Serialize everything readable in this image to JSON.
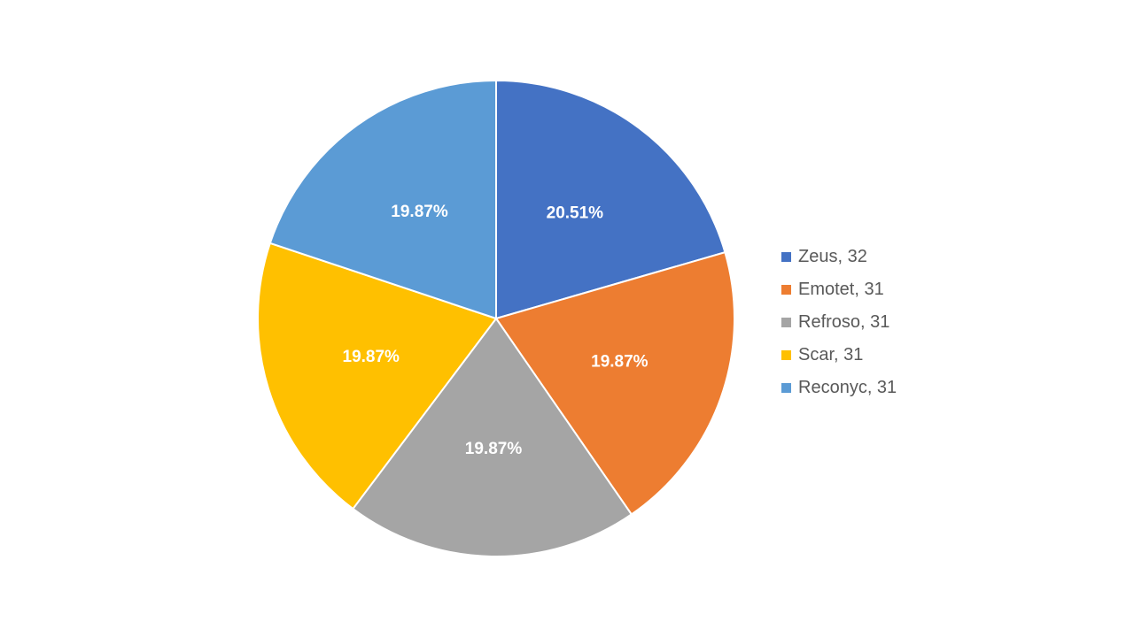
{
  "chart_data": {
    "type": "pie",
    "title": "",
    "categories": [
      "Zeus",
      "Emotet",
      "Refroso",
      "Scar",
      "Reconyc"
    ],
    "values": [
      32,
      31,
      31,
      31,
      31
    ],
    "percent_labels": [
      "20.51%",
      "19.87%",
      "19.87%",
      "19.87%",
      "19.87%"
    ],
    "colors": [
      "#4472C4",
      "#ED7D31",
      "#A5A5A5",
      "#FFC000",
      "#5B9BD5"
    ],
    "legend_labels": [
      "Zeus, 32",
      "Emotet, 31",
      "Refroso, 31",
      "Scar, 31",
      "Reconyc, 31"
    ],
    "legend_position": "right",
    "start_angle": "top, clockwise"
  }
}
